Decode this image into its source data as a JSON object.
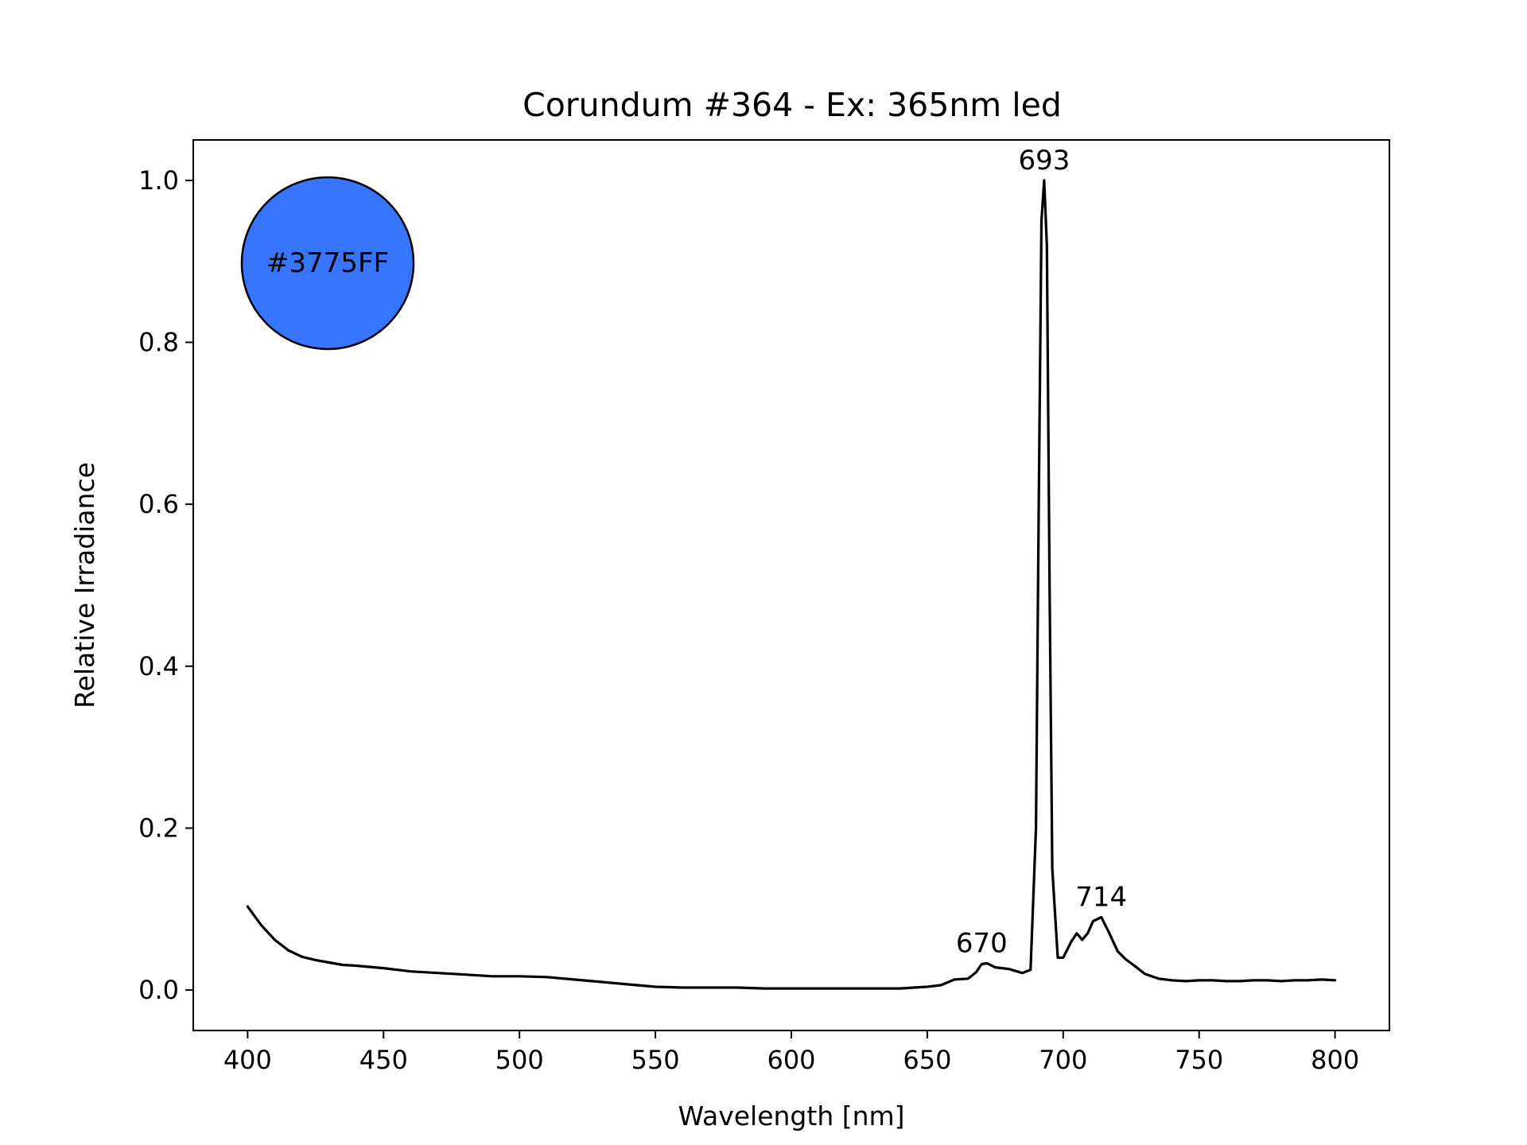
{
  "chart_data": {
    "type": "line",
    "title": "Corundum #364 - Ex: 365nm led",
    "xlabel": "Wavelength [nm]",
    "ylabel": "Relative Irradiance",
    "xlim": [
      380,
      820
    ],
    "ylim": [
      -0.05,
      1.05
    ],
    "xticks": [
      400,
      450,
      500,
      550,
      600,
      650,
      700,
      750,
      800
    ],
    "yticks": [
      0.0,
      0.2,
      0.4,
      0.6,
      0.8,
      1.0
    ],
    "ytick_labels": [
      "0.0",
      "0.2",
      "0.4",
      "0.6",
      "0.8",
      "1.0"
    ],
    "grid": false,
    "line_color": "#000000",
    "series": [
      {
        "x": [
          400,
          405,
          410,
          415,
          420,
          425,
          430,
          435,
          440,
          450,
          460,
          470,
          480,
          490,
          500,
          510,
          520,
          530,
          540,
          550,
          560,
          570,
          580,
          590,
          600,
          610,
          620,
          630,
          640,
          650,
          655,
          660,
          665,
          668,
          670,
          672,
          675,
          680,
          685,
          688,
          690,
          691,
          692,
          693,
          694,
          695,
          696,
          698,
          700,
          703,
          705,
          707,
          709,
          711,
          714,
          717,
          720,
          723,
          727,
          730,
          735,
          740,
          745,
          750,
          755,
          760,
          765,
          770,
          775,
          780,
          785,
          790,
          795,
          800
        ],
        "y": [
          0.103,
          0.08,
          0.062,
          0.049,
          0.041,
          0.037,
          0.034,
          0.031,
          0.03,
          0.027,
          0.023,
          0.021,
          0.019,
          0.017,
          0.017,
          0.016,
          0.013,
          0.01,
          0.007,
          0.004,
          0.003,
          0.003,
          0.003,
          0.002,
          0.002,
          0.002,
          0.002,
          0.002,
          0.002,
          0.004,
          0.006,
          0.013,
          0.014,
          0.022,
          0.032,
          0.033,
          0.028,
          0.026,
          0.021,
          0.025,
          0.2,
          0.6,
          0.95,
          1.0,
          0.92,
          0.5,
          0.15,
          0.04,
          0.04,
          0.06,
          0.07,
          0.062,
          0.07,
          0.085,
          0.09,
          0.07,
          0.048,
          0.038,
          0.028,
          0.02,
          0.014,
          0.012,
          0.011,
          0.012,
          0.012,
          0.011,
          0.011,
          0.012,
          0.012,
          0.011,
          0.012,
          0.012,
          0.013,
          0.012
        ]
      }
    ],
    "annotations": [
      {
        "text": "693",
        "x": 693,
        "y": 1.0
      },
      {
        "text": "670",
        "x": 670,
        "y": 0.033
      },
      {
        "text": "714",
        "x": 714,
        "y": 0.09
      }
    ],
    "color_swatch": {
      "label": "#3775FF",
      "color": "#3775FF"
    }
  }
}
